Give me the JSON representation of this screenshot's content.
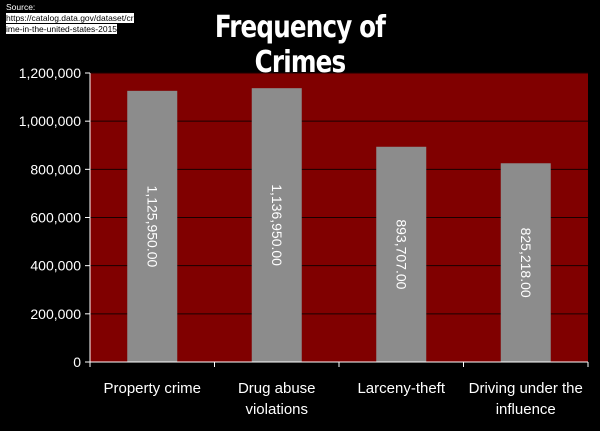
{
  "source": {
    "label": "Source:",
    "url": "https://catalog.data.gov/dataset/crime-in-the-united-states-2015"
  },
  "chart_data": {
    "type": "bar",
    "title": "Frequency of Crimes",
    "categories": [
      "Property crime",
      "Drug abuse violations",
      "Larceny-theft",
      "Driving under the influence"
    ],
    "category_lines": [
      [
        "Property crime"
      ],
      [
        "Drug abuse",
        "violations"
      ],
      [
        "Larceny-theft"
      ],
      [
        "Driving under the",
        "influence"
      ]
    ],
    "values": [
      1125950,
      1136950,
      893707,
      825218
    ],
    "data_labels": [
      "1,125,950.00",
      "1,136,950.00",
      "893,707.00",
      "825,218.00"
    ],
    "ylim": [
      0,
      1200000
    ],
    "yticks": [
      0,
      200000,
      400000,
      600000,
      800000,
      1000000,
      1200000
    ],
    "ytick_labels": [
      "0",
      "200,000",
      "400,000",
      "600,000",
      "800,000",
      "1,000,000",
      "1,200,000"
    ],
    "xlabel": "",
    "ylabel": "",
    "grid": true,
    "colors": {
      "plot_background": "#800000",
      "bar": "#8c8c8c",
      "gridline": "#1a0000",
      "axis": "#ffffff",
      "text": "#ffffff"
    }
  }
}
